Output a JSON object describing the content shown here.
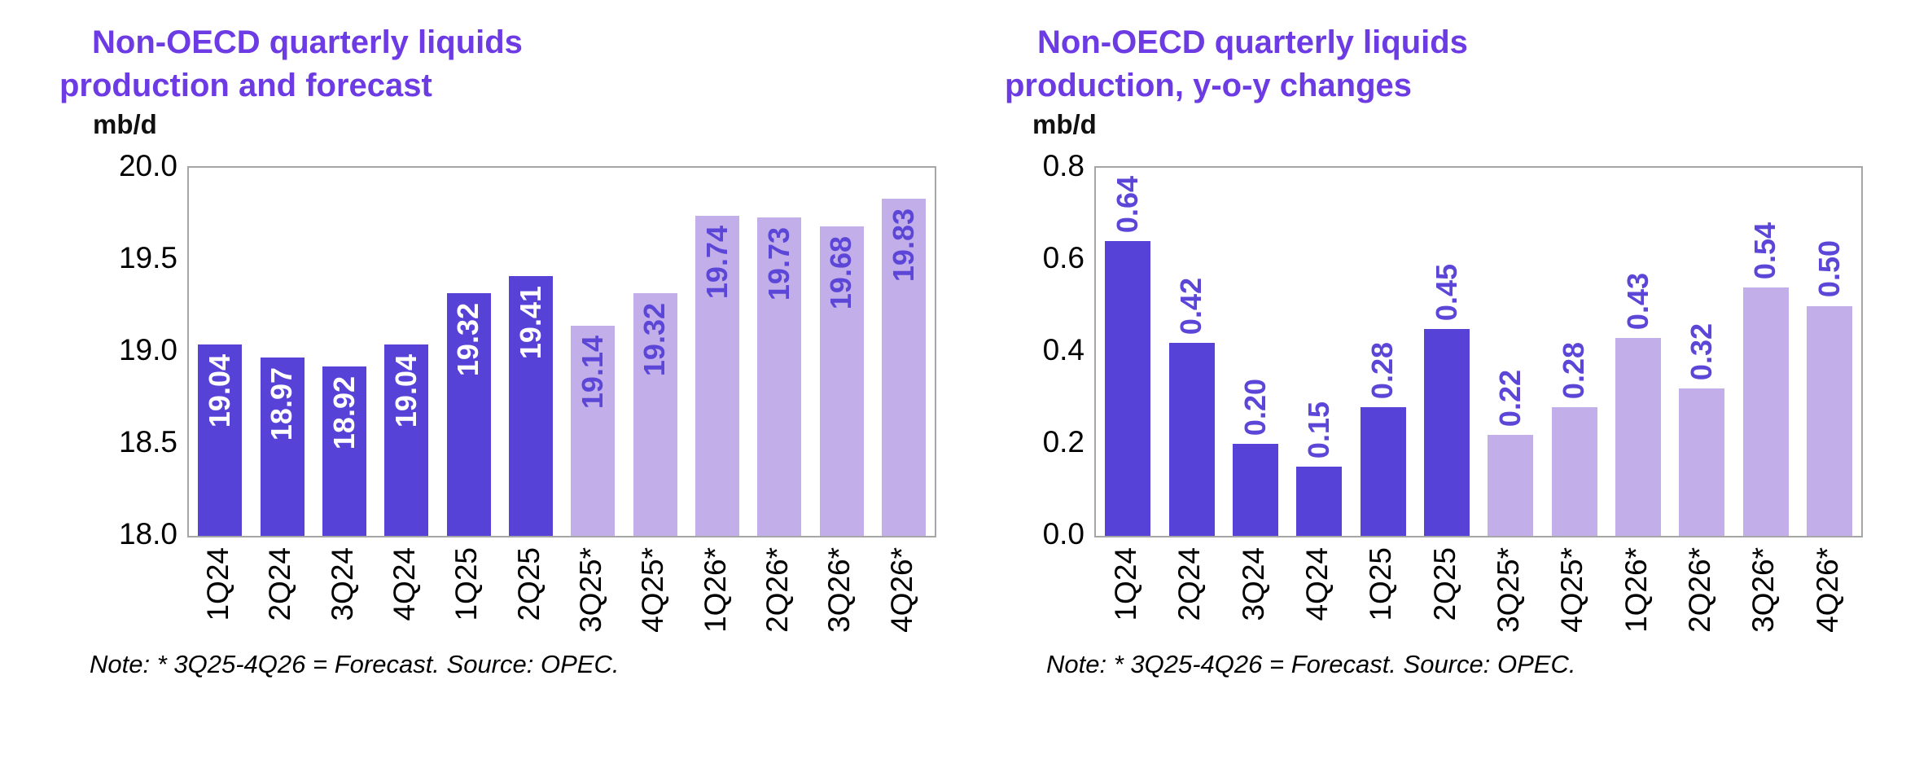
{
  "colors": {
    "title": "#6C3BE4",
    "bar_actual": "#5742D8",
    "bar_forecast": "#C2AFEA",
    "value_label_on_actual": "#FFFFFF",
    "value_label_purple": "#5B46D8",
    "axis_text": "#000000",
    "plot_border": "#A6A6A6",
    "background": "#FFFFFF"
  },
  "chart_data": [
    {
      "type": "bar",
      "title": "Non-OECD quarterly liquids\nproduction and forecast",
      "unit_label": "mb/d",
      "categories": [
        "1Q24",
        "2Q24",
        "3Q24",
        "4Q24",
        "1Q25",
        "2Q25",
        "3Q25*",
        "4Q25*",
        "1Q26*",
        "2Q26*",
        "3Q26*",
        "4Q26*"
      ],
      "values": [
        19.04,
        18.97,
        18.92,
        19.04,
        19.32,
        19.41,
        19.14,
        19.32,
        19.74,
        19.73,
        19.68,
        19.83
      ],
      "value_labels": [
        "19.04",
        "18.97",
        "18.92",
        "19.04",
        "19.32",
        "19.41",
        "19.14",
        "19.32",
        "19.74",
        "19.73",
        "19.68",
        "19.83"
      ],
      "y_ticks": [
        "20.0",
        "19.5",
        "19.0",
        "18.5",
        "18.0"
      ],
      "ylim": [
        18.0,
        20.0
      ],
      "grid": false,
      "legend": "none",
      "forecast_start_index": 6,
      "value_label_placement": "inside-top",
      "note": "Note: * 3Q25-4Q26 = Forecast. Source: OPEC."
    },
    {
      "type": "bar",
      "title": "Non-OECD quarterly liquids\nproduction, y-o-y changes",
      "unit_label": "mb/d",
      "categories": [
        "1Q24",
        "2Q24",
        "3Q24",
        "4Q24",
        "1Q25",
        "2Q25",
        "3Q25*",
        "4Q25*",
        "1Q26*",
        "2Q26*",
        "3Q26*",
        "4Q26*"
      ],
      "values": [
        0.64,
        0.42,
        0.2,
        0.15,
        0.28,
        0.45,
        0.22,
        0.28,
        0.43,
        0.32,
        0.54,
        0.5
      ],
      "value_labels": [
        "0.64",
        "0.42",
        "0.20",
        "0.15",
        "0.28",
        "0.45",
        "0.22",
        "0.28",
        "0.43",
        "0.32",
        "0.54",
        "0.50"
      ],
      "y_ticks": [
        "0.8",
        "0.6",
        "0.4",
        "0.2",
        "0.0"
      ],
      "ylim": [
        0.0,
        0.8
      ],
      "grid": false,
      "legend": "none",
      "forecast_start_index": 6,
      "value_label_placement": "above",
      "note": "Note: * 3Q25-4Q26 = Forecast. Source: OPEC."
    }
  ]
}
